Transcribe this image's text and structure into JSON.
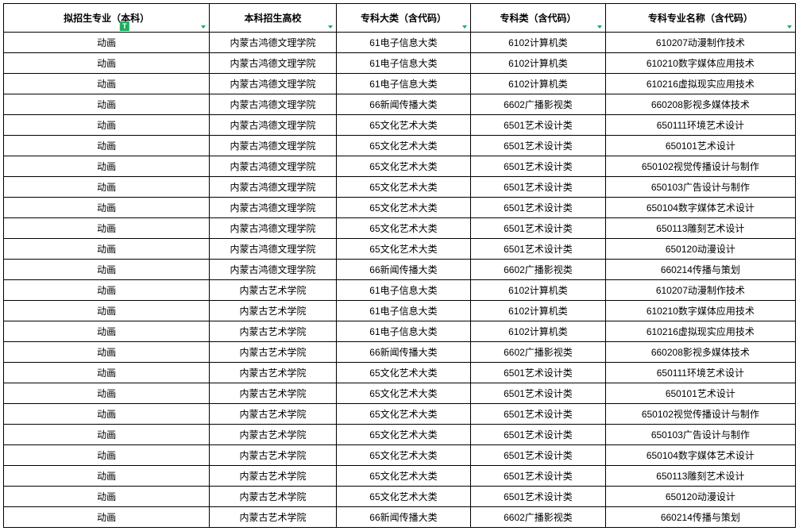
{
  "table": {
    "border_color": "#000000",
    "background_color": "#ffffff",
    "header_fontsize": 12,
    "cell_fontsize": 12,
    "filter_icon_color": "#1aaf5d",
    "columns": [
      {
        "label": "拟招生专业（本科）",
        "width_pct": 26,
        "has_text_icon": true
      },
      {
        "label": "本科招生高校",
        "width_pct": 16,
        "has_text_icon": false
      },
      {
        "label": "专科大类（含代码）",
        "width_pct": 17,
        "has_text_icon": false
      },
      {
        "label": "专科类（含代码）",
        "width_pct": 17,
        "has_text_icon": false
      },
      {
        "label": "专科专业名称（含代码）",
        "width_pct": 24,
        "has_text_icon": false
      }
    ],
    "rows": [
      [
        "动画",
        "内蒙古鸿德文理学院",
        "61电子信息大类",
        "6102计算机类",
        "610207动漫制作技术"
      ],
      [
        "动画",
        "内蒙古鸿德文理学院",
        "61电子信息大类",
        "6102计算机类",
        "610210数字媒体应用技术"
      ],
      [
        "动画",
        "内蒙古鸿德文理学院",
        "61电子信息大类",
        "6102计算机类",
        "610216虚拟现实应用技术"
      ],
      [
        "动画",
        "内蒙古鸿德文理学院",
        "66新闻传播大类",
        "6602广播影视类",
        "660208影视多媒体技术"
      ],
      [
        "动画",
        "内蒙古鸿德文理学院",
        "65文化艺术大类",
        "6501艺术设计类",
        "650111环境艺术设计"
      ],
      [
        "动画",
        "内蒙古鸿德文理学院",
        "65文化艺术大类",
        "6501艺术设计类",
        "650101艺术设计"
      ],
      [
        "动画",
        "内蒙古鸿德文理学院",
        "65文化艺术大类",
        "6501艺术设计类",
        "650102视觉传播设计与制作"
      ],
      [
        "动画",
        "内蒙古鸿德文理学院",
        "65文化艺术大类",
        "6501艺术设计类",
        "650103广告设计与制作"
      ],
      [
        "动画",
        "内蒙古鸿德文理学院",
        "65文化艺术大类",
        "6501艺术设计类",
        "650104数字媒体艺术设计"
      ],
      [
        "动画",
        "内蒙古鸿德文理学院",
        "65文化艺术大类",
        "6501艺术设计类",
        "650113雕刻艺术设计"
      ],
      [
        "动画",
        "内蒙古鸿德文理学院",
        "65文化艺术大类",
        "6501艺术设计类",
        "650120动漫设计"
      ],
      [
        "动画",
        "内蒙古鸿德文理学院",
        "66新闻传播大类",
        "6602广播影视类",
        "660214传播与策划"
      ],
      [
        "动画",
        "内蒙古艺术学院",
        "61电子信息大类",
        "6102计算机类",
        "610207动漫制作技术"
      ],
      [
        "动画",
        "内蒙古艺术学院",
        "61电子信息大类",
        "6102计算机类",
        "610210数字媒体应用技术"
      ],
      [
        "动画",
        "内蒙古艺术学院",
        "61电子信息大类",
        "6102计算机类",
        "610216虚拟现实应用技术"
      ],
      [
        "动画",
        "内蒙古艺术学院",
        "66新闻传播大类",
        "6602广播影视类",
        "660208影视多媒体技术"
      ],
      [
        "动画",
        "内蒙古艺术学院",
        "65文化艺术大类",
        "6501艺术设计类",
        "650111环境艺术设计"
      ],
      [
        "动画",
        "内蒙古艺术学院",
        "65文化艺术大类",
        "6501艺术设计类",
        "650101艺术设计"
      ],
      [
        "动画",
        "内蒙古艺术学院",
        "65文化艺术大类",
        "6501艺术设计类",
        "650102视觉传播设计与制作"
      ],
      [
        "动画",
        "内蒙古艺术学院",
        "65文化艺术大类",
        "6501艺术设计类",
        "650103广告设计与制作"
      ],
      [
        "动画",
        "内蒙古艺术学院",
        "65文化艺术大类",
        "6501艺术设计类",
        "650104数字媒体艺术设计"
      ],
      [
        "动画",
        "内蒙古艺术学院",
        "65文化艺术大类",
        "6501艺术设计类",
        "650113雕刻艺术设计"
      ],
      [
        "动画",
        "内蒙古艺术学院",
        "65文化艺术大类",
        "6501艺术设计类",
        "650120动漫设计"
      ],
      [
        "动画",
        "内蒙古艺术学院",
        "66新闻传播大类",
        "6602广播影视类",
        "660214传播与策划"
      ]
    ]
  },
  "icons": {
    "text_badge_label": "T"
  }
}
